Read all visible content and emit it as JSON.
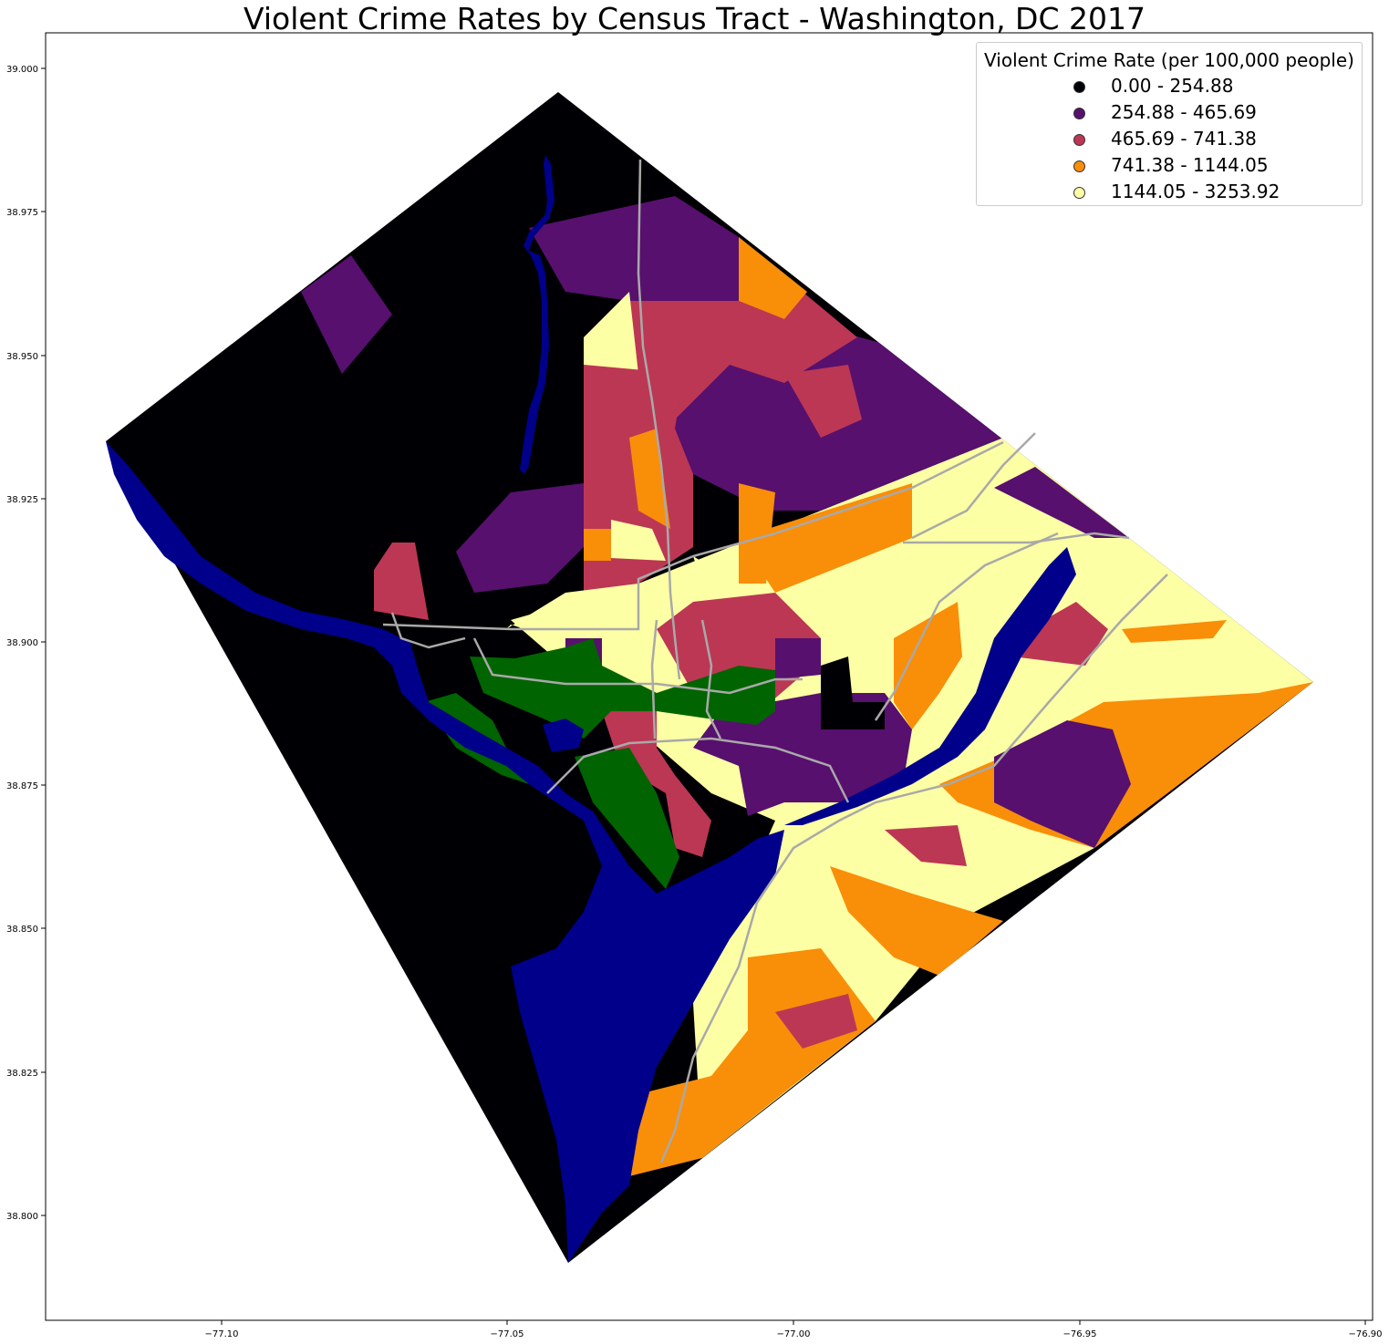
{
  "title": "Violent Crime Rates by Census Tract - Washington, DC 2017",
  "axes": {
    "x_ticks": [
      "−77.10",
      "−77.05",
      "−77.00",
      "−76.95",
      "−76.90"
    ],
    "y_ticks": [
      "39.000",
      "38.975",
      "38.950",
      "38.925",
      "38.900",
      "38.875",
      "38.850",
      "38.825",
      "38.800"
    ]
  },
  "legend": {
    "title": "Violent Crime Rate (per 100,000 people)",
    "items": [
      {
        "label": "0.00 - 254.88",
        "color": "#000004"
      },
      {
        "label": "254.88 - 465.69",
        "color": "#57106e"
      },
      {
        "label": "465.69 - 741.38",
        "color": "#bc3754"
      },
      {
        "label": "741.38 - 1144.05",
        "color": "#f98e09"
      },
      {
        "label": "1144.05 - 3253.92",
        "color": "#fcffa4"
      }
    ]
  },
  "map_colors": {
    "water": "#00008b",
    "parks": "#006400",
    "roads": "#a9a9a9"
  }
}
